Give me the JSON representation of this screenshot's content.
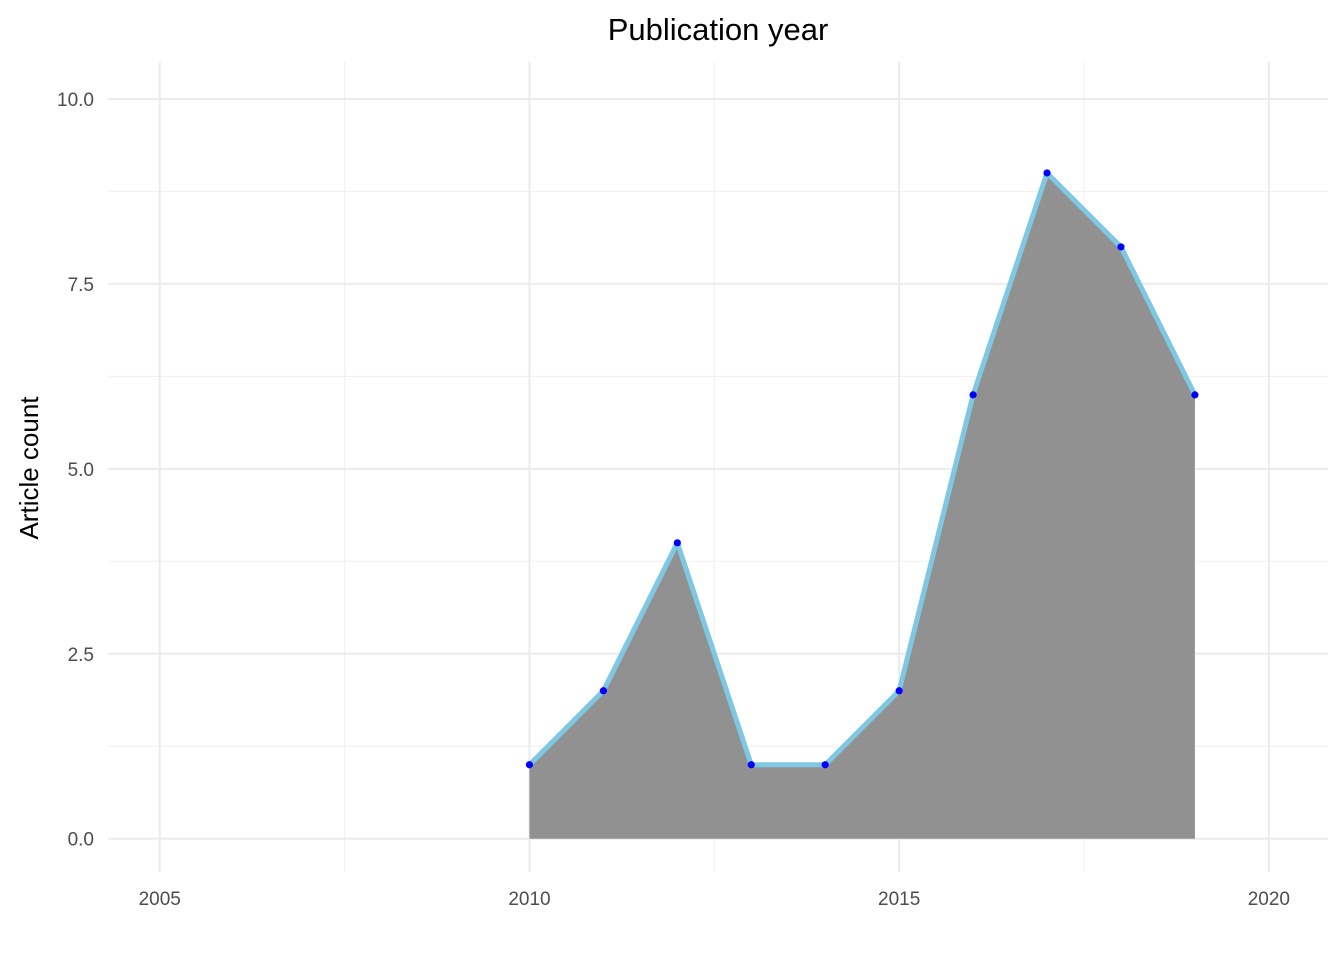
{
  "chart_data": {
    "type": "area",
    "title": "Publication year",
    "xlabel": "",
    "ylabel": "Article count",
    "x": [
      2010,
      2011,
      2012,
      2013,
      2014,
      2015,
      2016,
      2017,
      2018,
      2019
    ],
    "series": [
      {
        "values": [
          1,
          2,
          4,
          1,
          1,
          2,
          6,
          9,
          8,
          6
        ]
      }
    ],
    "xlim": [
      2004.3,
      2020.8
    ],
    "ylim": [
      -0.45,
      10.5
    ],
    "x_ticks": [
      2005,
      2010,
      2015,
      2020
    ],
    "x_tick_labels": [
      "2005",
      "2010",
      "2015",
      "2020"
    ],
    "y_ticks": [
      0,
      2.5,
      5,
      7.5,
      10
    ],
    "y_tick_labels": [
      "0.0",
      "2.5",
      "5.0",
      "7.5",
      "10.0"
    ],
    "grid": true,
    "legend": "none",
    "colors": {
      "area_fill": "#919191",
      "line": "#7ec8e3",
      "points": "#0000ff",
      "grid_major": "#ebebeb",
      "grid_minor": "#f2f2f2"
    }
  }
}
